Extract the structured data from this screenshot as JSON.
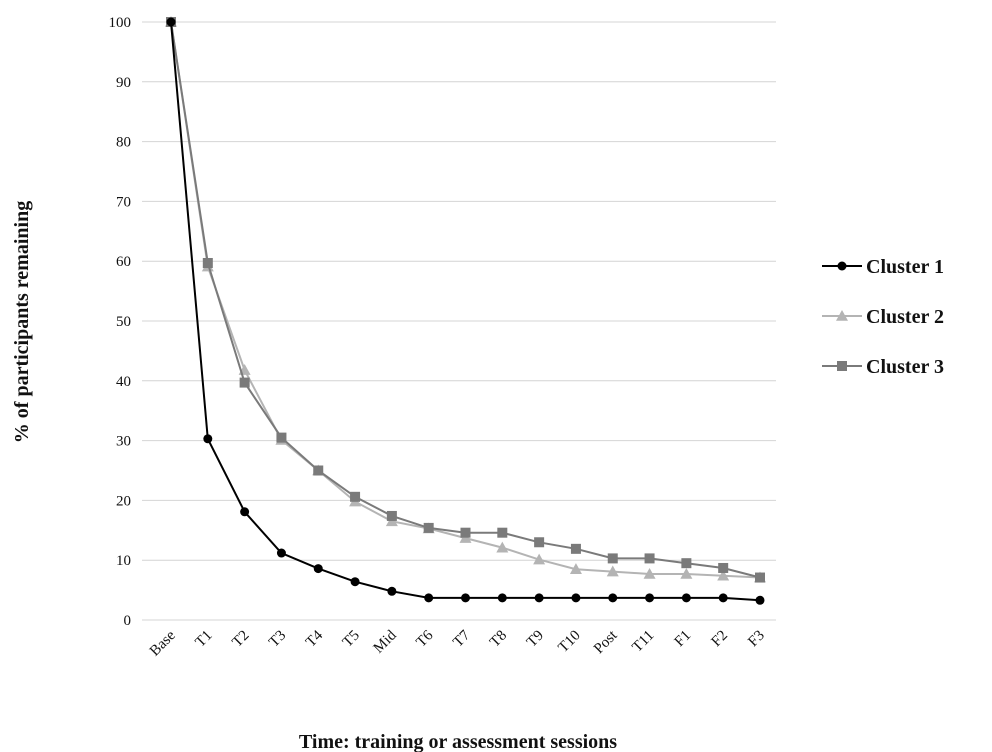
{
  "chart_data": {
    "type": "line",
    "title": "",
    "xlabel": "Time: training or assessment sessions",
    "ylabel": "% of participants remaining",
    "ylim": [
      0,
      100
    ],
    "yticks": [
      0,
      10,
      20,
      30,
      40,
      50,
      60,
      70,
      80,
      90,
      100
    ],
    "grid": "horizontal",
    "legend_position": "right",
    "categories": [
      "Base",
      "T1",
      "T2",
      "T3",
      "T4",
      "T5",
      "Mid",
      "T6",
      "T7",
      "T8",
      "T9",
      "T10",
      "Post",
      "T11",
      "F1",
      "F2",
      "F3"
    ],
    "series": [
      {
        "name": "Cluster 1",
        "color": "#000000",
        "marker": "circle",
        "values": [
          100,
          30.3,
          18.1,
          11.2,
          8.6,
          6.4,
          4.8,
          3.7,
          3.7,
          3.7,
          3.7,
          3.7,
          3.7,
          3.7,
          3.7,
          3.7,
          3.3
        ]
      },
      {
        "name": "Cluster 2",
        "color": "#b4b4b4",
        "marker": "triangle",
        "values": [
          100,
          59.1,
          41.8,
          30.1,
          25.0,
          19.8,
          16.5,
          15.3,
          13.7,
          12.1,
          10.1,
          8.5,
          8.1,
          7.7,
          7.7,
          7.4,
          7.1
        ]
      },
      {
        "name": "Cluster 3",
        "color": "#7a7a7a",
        "marker": "square",
        "values": [
          100,
          59.7,
          39.7,
          30.5,
          25.0,
          20.6,
          17.4,
          15.4,
          14.6,
          14.6,
          13.0,
          11.9,
          10.3,
          10.3,
          9.5,
          8.7,
          7.1
        ]
      }
    ]
  }
}
